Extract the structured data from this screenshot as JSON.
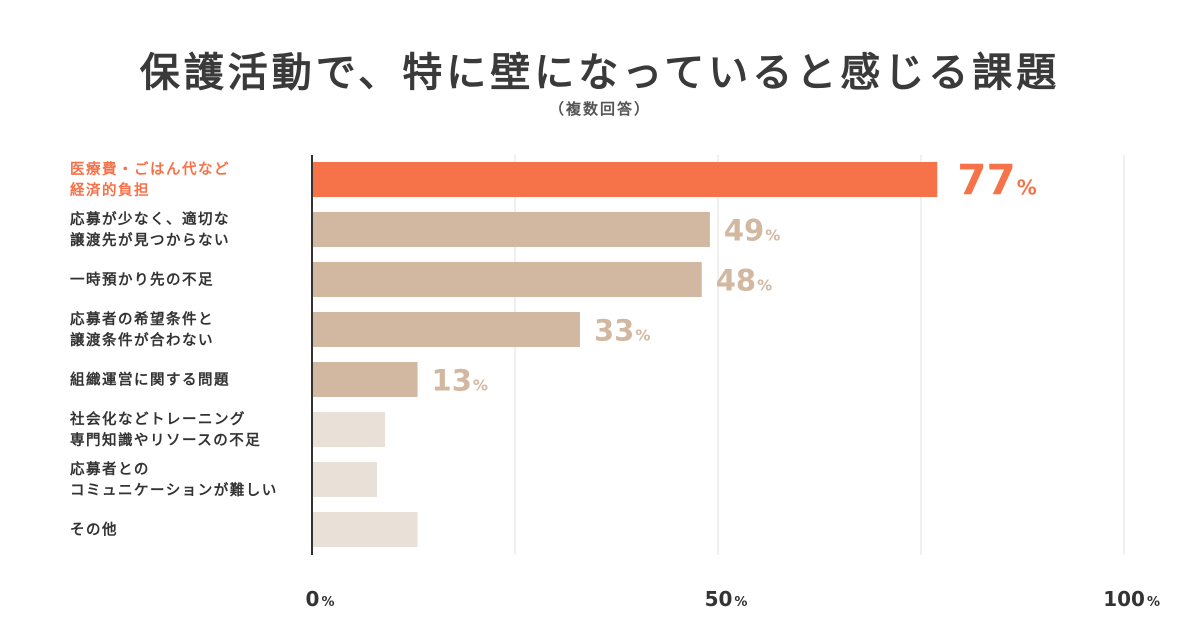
{
  "colors": {
    "highlight": "#F6734A",
    "primary": "#D2B8A0",
    "muted": "#E9E1D8",
    "label": "#333333",
    "grid": "#ECECEC"
  },
  "chart_data": {
    "type": "bar",
    "orientation": "horizontal",
    "title": "保護活動で、特に壁になっていると感じる課題",
    "subtitle": "（複数回答）",
    "xlim": [
      0,
      100
    ],
    "grid": true,
    "unit": "%",
    "ticks": [
      {
        "value": 0,
        "label": "0"
      },
      {
        "value": 50,
        "label": "50"
      },
      {
        "value": 100,
        "label": "100"
      }
    ],
    "categories": [
      [
        "医療費・ごはん代など",
        "経済的負担"
      ],
      [
        "応募が少なく、適切な",
        "譲渡先が見つからない"
      ],
      [
        "一時預かり先の不足"
      ],
      [
        "応募者の希望条件と",
        "譲渡条件が合わない"
      ],
      [
        "組織運営に関する問題"
      ],
      [
        "社会化などトレーニング",
        "専門知識やリソースの不足"
      ],
      [
        "応募者との",
        "コミュニケーションが難しい"
      ],
      [
        "その他"
      ]
    ],
    "values": [
      77,
      49,
      48,
      33,
      13,
      9,
      8,
      13
    ],
    "value_labels": [
      "77",
      "49",
      "48",
      "33",
      "13",
      null,
      null,
      null
    ],
    "styles": [
      "highlight",
      "primary",
      "primary",
      "primary",
      "primary",
      "muted",
      "muted",
      "muted"
    ]
  }
}
